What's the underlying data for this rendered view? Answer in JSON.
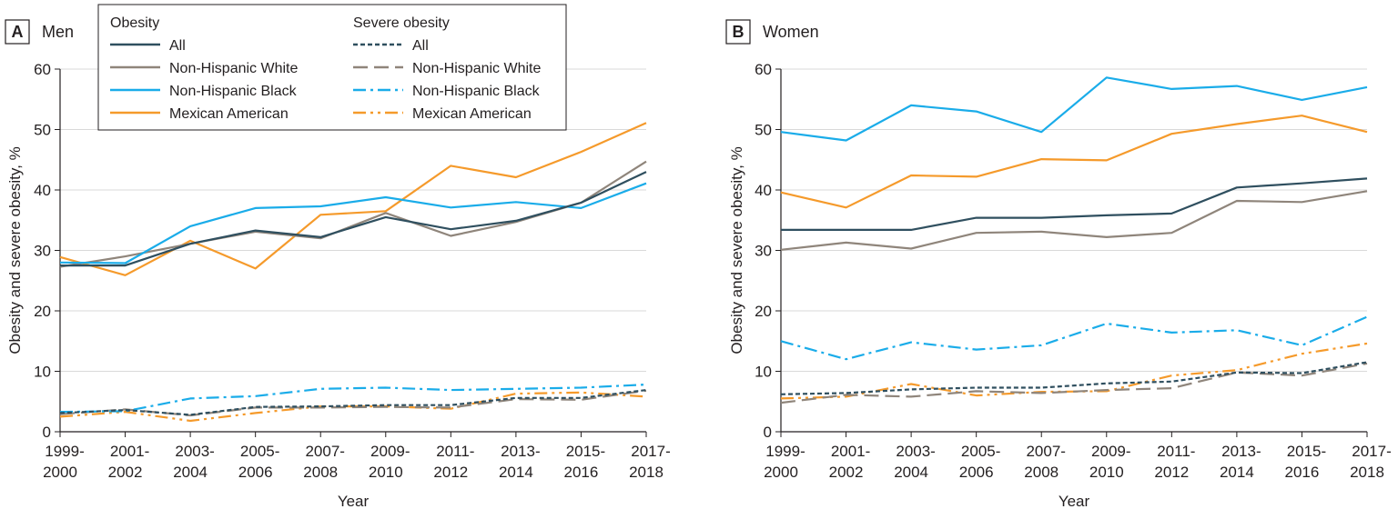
{
  "colors": {
    "all": "#2f4f5f",
    "white": "#8f857b",
    "black": "#1aace9",
    "mexican": "#f59a2b",
    "axis": "#231f20"
  },
  "legend": {
    "obesity_heading": "Obesity",
    "severe_heading": "Severe obesity",
    "items": [
      "All",
      "Non-Hispanic White",
      "Non-Hispanic Black",
      "Mexican American"
    ]
  },
  "chart_data": [
    {
      "type": "line",
      "panel_letter": "A",
      "title": "Men",
      "xlabel": "Year",
      "ylabel": "Obesity and severe obesity, %",
      "ylim": [
        0,
        60
      ],
      "yticks": [
        0,
        10,
        20,
        30,
        40,
        50,
        60
      ],
      "categories": [
        [
          "1999-",
          "2000"
        ],
        [
          "2001-",
          "2002"
        ],
        [
          "2003-",
          "2004"
        ],
        [
          "2005-",
          "2006"
        ],
        [
          "2007-",
          "2008"
        ],
        [
          "2009-",
          "2010"
        ],
        [
          "2011-",
          "2012"
        ],
        [
          "2013-",
          "2014"
        ],
        [
          "2015-",
          "2016"
        ],
        [
          "2017-",
          "2018"
        ]
      ],
      "series": [
        {
          "name": "All",
          "group": "Obesity",
          "key": "all",
          "values": [
            27.5,
            27.5,
            31.1,
            33.3,
            32.2,
            35.5,
            33.5,
            34.9,
            37.9,
            43.0
          ]
        },
        {
          "name": "Non-Hispanic White",
          "group": "Obesity",
          "key": "white",
          "values": [
            27.3,
            29.0,
            31.1,
            33.1,
            32.0,
            36.2,
            32.4,
            34.7,
            37.9,
            44.7
          ]
        },
        {
          "name": "Non-Hispanic Black",
          "group": "Obesity",
          "key": "black",
          "values": [
            28.0,
            27.9,
            34.0,
            37.0,
            37.3,
            38.8,
            37.1,
            38.0,
            37.0,
            41.1
          ]
        },
        {
          "name": "Mexican American",
          "group": "Obesity",
          "key": "mexican",
          "values": [
            28.9,
            25.9,
            31.6,
            27.0,
            35.9,
            36.5,
            44.0,
            42.1,
            46.3,
            51.1
          ]
        },
        {
          "name": "All",
          "group": "Severe obesity",
          "key": "all",
          "values": [
            3.1,
            3.6,
            2.8,
            4.1,
            4.2,
            4.4,
            4.4,
            5.6,
            5.6,
            6.9
          ]
        },
        {
          "name": "Non-Hispanic White",
          "group": "Severe obesity",
          "key": "white",
          "values": [
            2.9,
            3.7,
            2.7,
            4.0,
            4.0,
            4.1,
            4.0,
            5.4,
            5.3,
            6.8
          ]
        },
        {
          "name": "Non-Hispanic Black",
          "group": "Severe obesity",
          "key": "black",
          "values": [
            3.3,
            3.4,
            5.5,
            5.9,
            7.1,
            7.3,
            6.9,
            7.1,
            7.3,
            7.8
          ]
        },
        {
          "name": "Mexican American",
          "group": "Severe obesity",
          "key": "mexican",
          "values": [
            2.5,
            3.3,
            1.8,
            3.1,
            4.2,
            4.2,
            3.8,
            6.3,
            6.5,
            5.8
          ]
        }
      ]
    },
    {
      "type": "line",
      "panel_letter": "B",
      "title": "Women",
      "xlabel": "Year",
      "ylabel": "Obesity and severe obesity, %",
      "ylim": [
        0,
        60
      ],
      "yticks": [
        0,
        10,
        20,
        30,
        40,
        50,
        60
      ],
      "categories": [
        [
          "1999-",
          "2000"
        ],
        [
          "2001-",
          "2002"
        ],
        [
          "2003-",
          "2004"
        ],
        [
          "2005-",
          "2006"
        ],
        [
          "2007-",
          "2008"
        ],
        [
          "2009-",
          "2010"
        ],
        [
          "2011-",
          "2012"
        ],
        [
          "2013-",
          "2014"
        ],
        [
          "2015-",
          "2016"
        ],
        [
          "2017-",
          "2018"
        ]
      ],
      "series": [
        {
          "name": "All",
          "group": "Obesity",
          "key": "all",
          "values": [
            33.4,
            33.4,
            33.4,
            35.4,
            35.4,
            35.8,
            36.1,
            40.4,
            41.1,
            41.9
          ]
        },
        {
          "name": "Non-Hispanic White",
          "group": "Obesity",
          "key": "white",
          "values": [
            30.1,
            31.3,
            30.3,
            32.9,
            33.1,
            32.2,
            32.9,
            38.2,
            38.0,
            39.8
          ]
        },
        {
          "name": "Non-Hispanic Black",
          "group": "Obesity",
          "key": "black",
          "values": [
            49.6,
            48.2,
            54.0,
            53.0,
            49.6,
            58.6,
            56.7,
            57.2,
            54.9,
            57.0
          ]
        },
        {
          "name": "Mexican American",
          "group": "Obesity",
          "key": "mexican",
          "values": [
            39.6,
            37.1,
            42.4,
            42.2,
            45.1,
            44.9,
            49.3,
            50.9,
            52.3,
            49.6
          ]
        },
        {
          "name": "All",
          "group": "Severe obesity",
          "key": "all",
          "values": [
            6.2,
            6.4,
            7.0,
            7.3,
            7.3,
            8.0,
            8.3,
            9.8,
            9.7,
            11.5
          ]
        },
        {
          "name": "Non-Hispanic White",
          "group": "Severe obesity",
          "key": "white",
          "values": [
            4.8,
            6.1,
            5.8,
            6.7,
            6.4,
            6.9,
            7.2,
            9.8,
            9.3,
            11.3
          ]
        },
        {
          "name": "Non-Hispanic Black",
          "group": "Severe obesity",
          "key": "black",
          "values": [
            15.0,
            12.0,
            14.8,
            13.6,
            14.3,
            17.9,
            16.4,
            16.8,
            14.3,
            19.0
          ]
        },
        {
          "name": "Mexican American",
          "group": "Severe obesity",
          "key": "mexican",
          "values": [
            5.5,
            5.8,
            7.9,
            6.0,
            6.6,
            6.7,
            9.3,
            10.2,
            12.9,
            14.6
          ]
        }
      ]
    }
  ]
}
